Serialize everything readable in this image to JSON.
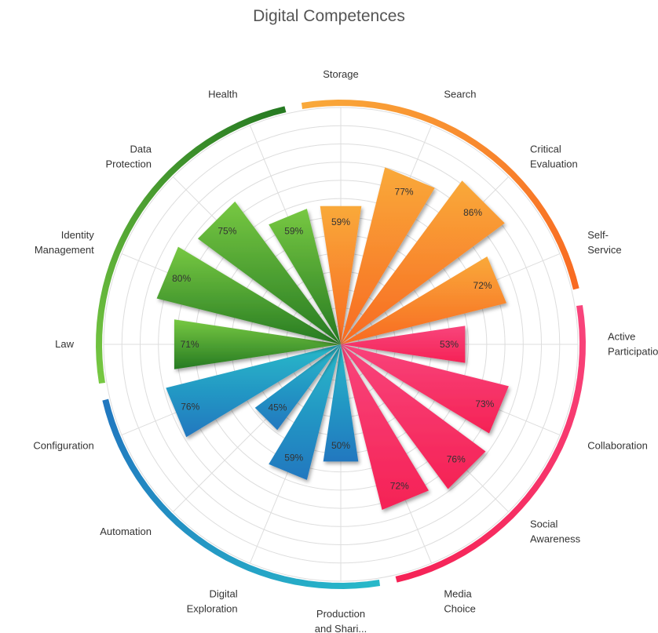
{
  "chart_data": {
    "type": "polar-bar",
    "title": "Digital Competences",
    "rmax": 100,
    "grid": true,
    "categories": [
      {
        "lines": [
          "Storage"
        ],
        "value": 59,
        "label": "59%",
        "group": "orange"
      },
      {
        "lines": [
          "Search"
        ],
        "value": 77,
        "label": "77%",
        "group": "orange"
      },
      {
        "lines": [
          "Critical",
          "Evaluation"
        ],
        "value": 86,
        "label": "86%",
        "group": "orange"
      },
      {
        "lines": [
          "Self-",
          "Service"
        ],
        "value": 72,
        "label": "72%",
        "group": "orange"
      },
      {
        "lines": [
          "Active",
          "Participation"
        ],
        "value": 53,
        "label": "53%",
        "group": "pink"
      },
      {
        "lines": [
          "Collaboration"
        ],
        "value": 73,
        "label": "73%",
        "group": "pink"
      },
      {
        "lines": [
          "Social",
          "Awareness"
        ],
        "value": 76,
        "label": "76%",
        "group": "pink"
      },
      {
        "lines": [
          "Media",
          "Choice"
        ],
        "value": 72,
        "label": "72%",
        "group": "pink"
      },
      {
        "lines": [
          "Production",
          "and Shari..."
        ],
        "value": 50,
        "label": "50%",
        "group": "blue"
      },
      {
        "lines": [
          "Digital",
          "Exploration"
        ],
        "value": 59,
        "label": "59%",
        "group": "blue"
      },
      {
        "lines": [
          "Automation"
        ],
        "value": 45,
        "label": "45%",
        "group": "blue"
      },
      {
        "lines": [
          "Configuration"
        ],
        "value": 76,
        "label": "76%",
        "group": "blue"
      },
      {
        "lines": [
          "Law"
        ],
        "value": 71,
        "label": "71%",
        "group": "green"
      },
      {
        "lines": [
          "Identity",
          "Management"
        ],
        "value": 80,
        "label": "80%",
        "group": "green"
      },
      {
        "lines": [
          "Data",
          "Protection"
        ],
        "value": 75,
        "label": "75%",
        "group": "green"
      },
      {
        "lines": [
          "Health"
        ],
        "value": 59,
        "label": "59%",
        "group": "green"
      }
    ],
    "groups": {
      "orange": {
        "light": "#f9a93a",
        "dark": "#f86a22"
      },
      "pink": {
        "light": "#f8457c",
        "dark": "#f52255"
      },
      "blue": {
        "light": "#27b9c9",
        "dark": "#2177bf"
      },
      "green": {
        "light": "#77c842",
        "dark": "#267a22"
      }
    }
  }
}
